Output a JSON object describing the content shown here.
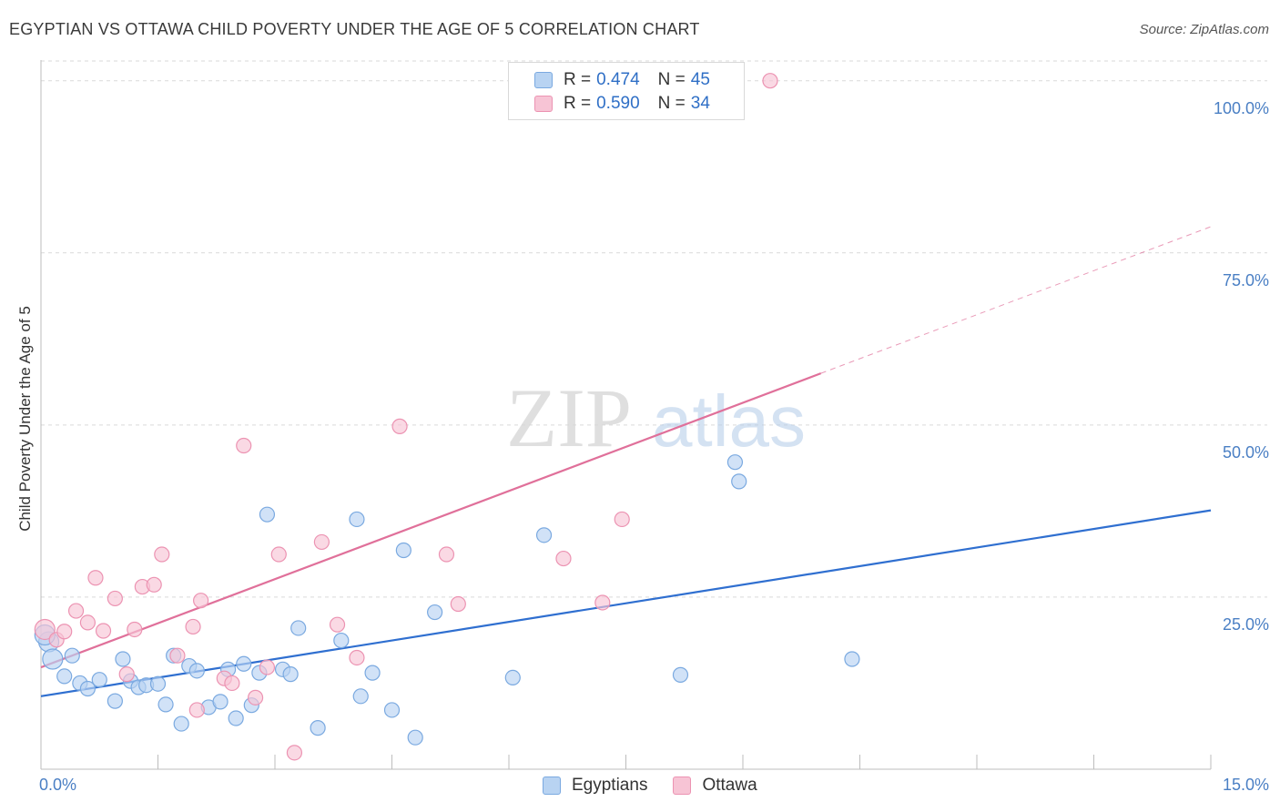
{
  "title": "EGYPTIAN VS OTTAWA CHILD POVERTY UNDER THE AGE OF 5 CORRELATION CHART",
  "source_label": "Source:",
  "source_value": "ZipAtlas.com",
  "watermark": {
    "zip": "ZIP",
    "atlas": "atlas"
  },
  "colors": {
    "blue_fill": "#b8d3f2",
    "blue_stroke": "#7aa9e0",
    "blue_line": "#2f6fd0",
    "pink_fill": "#f7c4d5",
    "pink_stroke": "#ec93b2",
    "pink_line": "#e0709a",
    "grid": "#d9d9d9",
    "tick_text": "#4a7fc4"
  },
  "legend": {
    "r_label": "R =",
    "n_label": "N =",
    "rows": [
      {
        "series": "Egyptians",
        "r": "0.474",
        "n": "45"
      },
      {
        "series": "Ottawa",
        "r": "0.590",
        "n": "34"
      }
    ]
  },
  "chart_data": {
    "type": "scatter",
    "title": "EGYPTIAN VS OTTAWA CHILD POVERTY UNDER THE AGE OF 5 CORRELATION CHART",
    "xlabel": "",
    "ylabel": "Child Poverty Under the Age of 5",
    "xlim": [
      0,
      15
    ],
    "ylim": [
      0,
      103
    ],
    "x_ticks": [
      {
        "value": 0,
        "label": "0.0%"
      },
      {
        "value": 15,
        "label": "15.0%"
      }
    ],
    "y_ticks": [
      {
        "value": 25,
        "label": "25.0%"
      },
      {
        "value": 50,
        "label": "50.0%"
      },
      {
        "value": 75,
        "label": "75.0%"
      },
      {
        "value": 100,
        "label": "100.0%"
      }
    ],
    "grid": true,
    "legend_position": "bottom",
    "series": [
      {
        "name": "Egyptians",
        "color": "#b8d3f2",
        "points": [
          [
            0.1,
            18.5
          ],
          [
            0.15,
            16.0
          ],
          [
            0.3,
            13.5
          ],
          [
            0.4,
            16.5
          ],
          [
            0.5,
            12.5
          ],
          [
            0.6,
            11.7
          ],
          [
            0.75,
            13.0
          ],
          [
            0.95,
            9.9
          ],
          [
            1.05,
            16.0
          ],
          [
            1.15,
            12.8
          ],
          [
            1.25,
            11.9
          ],
          [
            1.35,
            12.2
          ],
          [
            1.5,
            12.4
          ],
          [
            1.6,
            9.4
          ],
          [
            1.7,
            16.5
          ],
          [
            1.8,
            6.6
          ],
          [
            1.9,
            15.0
          ],
          [
            2.0,
            14.3
          ],
          [
            2.15,
            9.0
          ],
          [
            2.3,
            9.8
          ],
          [
            2.4,
            14.5
          ],
          [
            2.5,
            7.4
          ],
          [
            2.6,
            15.3
          ],
          [
            2.7,
            9.3
          ],
          [
            2.8,
            14.0
          ],
          [
            2.9,
            37.0
          ],
          [
            3.1,
            14.5
          ],
          [
            3.2,
            13.8
          ],
          [
            3.3,
            20.5
          ],
          [
            3.55,
            6.0
          ],
          [
            3.85,
            18.7
          ],
          [
            4.05,
            36.3
          ],
          [
            4.1,
            10.6
          ],
          [
            4.25,
            14.0
          ],
          [
            4.5,
            8.6
          ],
          [
            4.65,
            31.8
          ],
          [
            4.8,
            4.6
          ],
          [
            5.05,
            22.8
          ],
          [
            6.05,
            13.3
          ],
          [
            6.45,
            34.0
          ],
          [
            8.2,
            13.7
          ],
          [
            8.9,
            44.6
          ],
          [
            8.95,
            41.8
          ],
          [
            10.4,
            16.0
          ],
          [
            0.05,
            19.5
          ]
        ]
      },
      {
        "name": "Ottawa",
        "color": "#f7c4d5",
        "points": [
          [
            0.05,
            20.3
          ],
          [
            0.2,
            18.8
          ],
          [
            0.3,
            20.0
          ],
          [
            0.45,
            23.0
          ],
          [
            0.6,
            21.3
          ],
          [
            0.7,
            27.8
          ],
          [
            0.8,
            20.1
          ],
          [
            0.95,
            24.8
          ],
          [
            1.1,
            13.8
          ],
          [
            1.2,
            20.3
          ],
          [
            1.3,
            26.5
          ],
          [
            1.45,
            26.8
          ],
          [
            1.55,
            31.2
          ],
          [
            1.75,
            16.5
          ],
          [
            1.95,
            20.7
          ],
          [
            2.05,
            24.5
          ],
          [
            2.0,
            8.6
          ],
          [
            2.35,
            13.2
          ],
          [
            2.45,
            12.5
          ],
          [
            2.6,
            47.0
          ],
          [
            2.75,
            10.4
          ],
          [
            2.9,
            14.8
          ],
          [
            3.05,
            31.2
          ],
          [
            3.25,
            2.4
          ],
          [
            3.6,
            33.0
          ],
          [
            3.8,
            21.0
          ],
          [
            4.05,
            16.2
          ],
          [
            4.6,
            49.8
          ],
          [
            5.2,
            31.2
          ],
          [
            5.35,
            24.0
          ],
          [
            6.7,
            30.6
          ],
          [
            7.2,
            24.2
          ],
          [
            7.45,
            36.3
          ],
          [
            9.35,
            100.0
          ]
        ]
      }
    ],
    "trend_lines": [
      {
        "series": "Egyptians",
        "x": [
          0,
          15
        ],
        "y": [
          10.6,
          37.6
        ]
      },
      {
        "series": "Ottawa",
        "x": [
          0,
          10.0
        ],
        "y": [
          14.8,
          57.5
        ],
        "dashed_extension": {
          "x": [
            10.0,
            15
          ],
          "y": [
            57.5,
            78.8
          ]
        }
      }
    ]
  }
}
